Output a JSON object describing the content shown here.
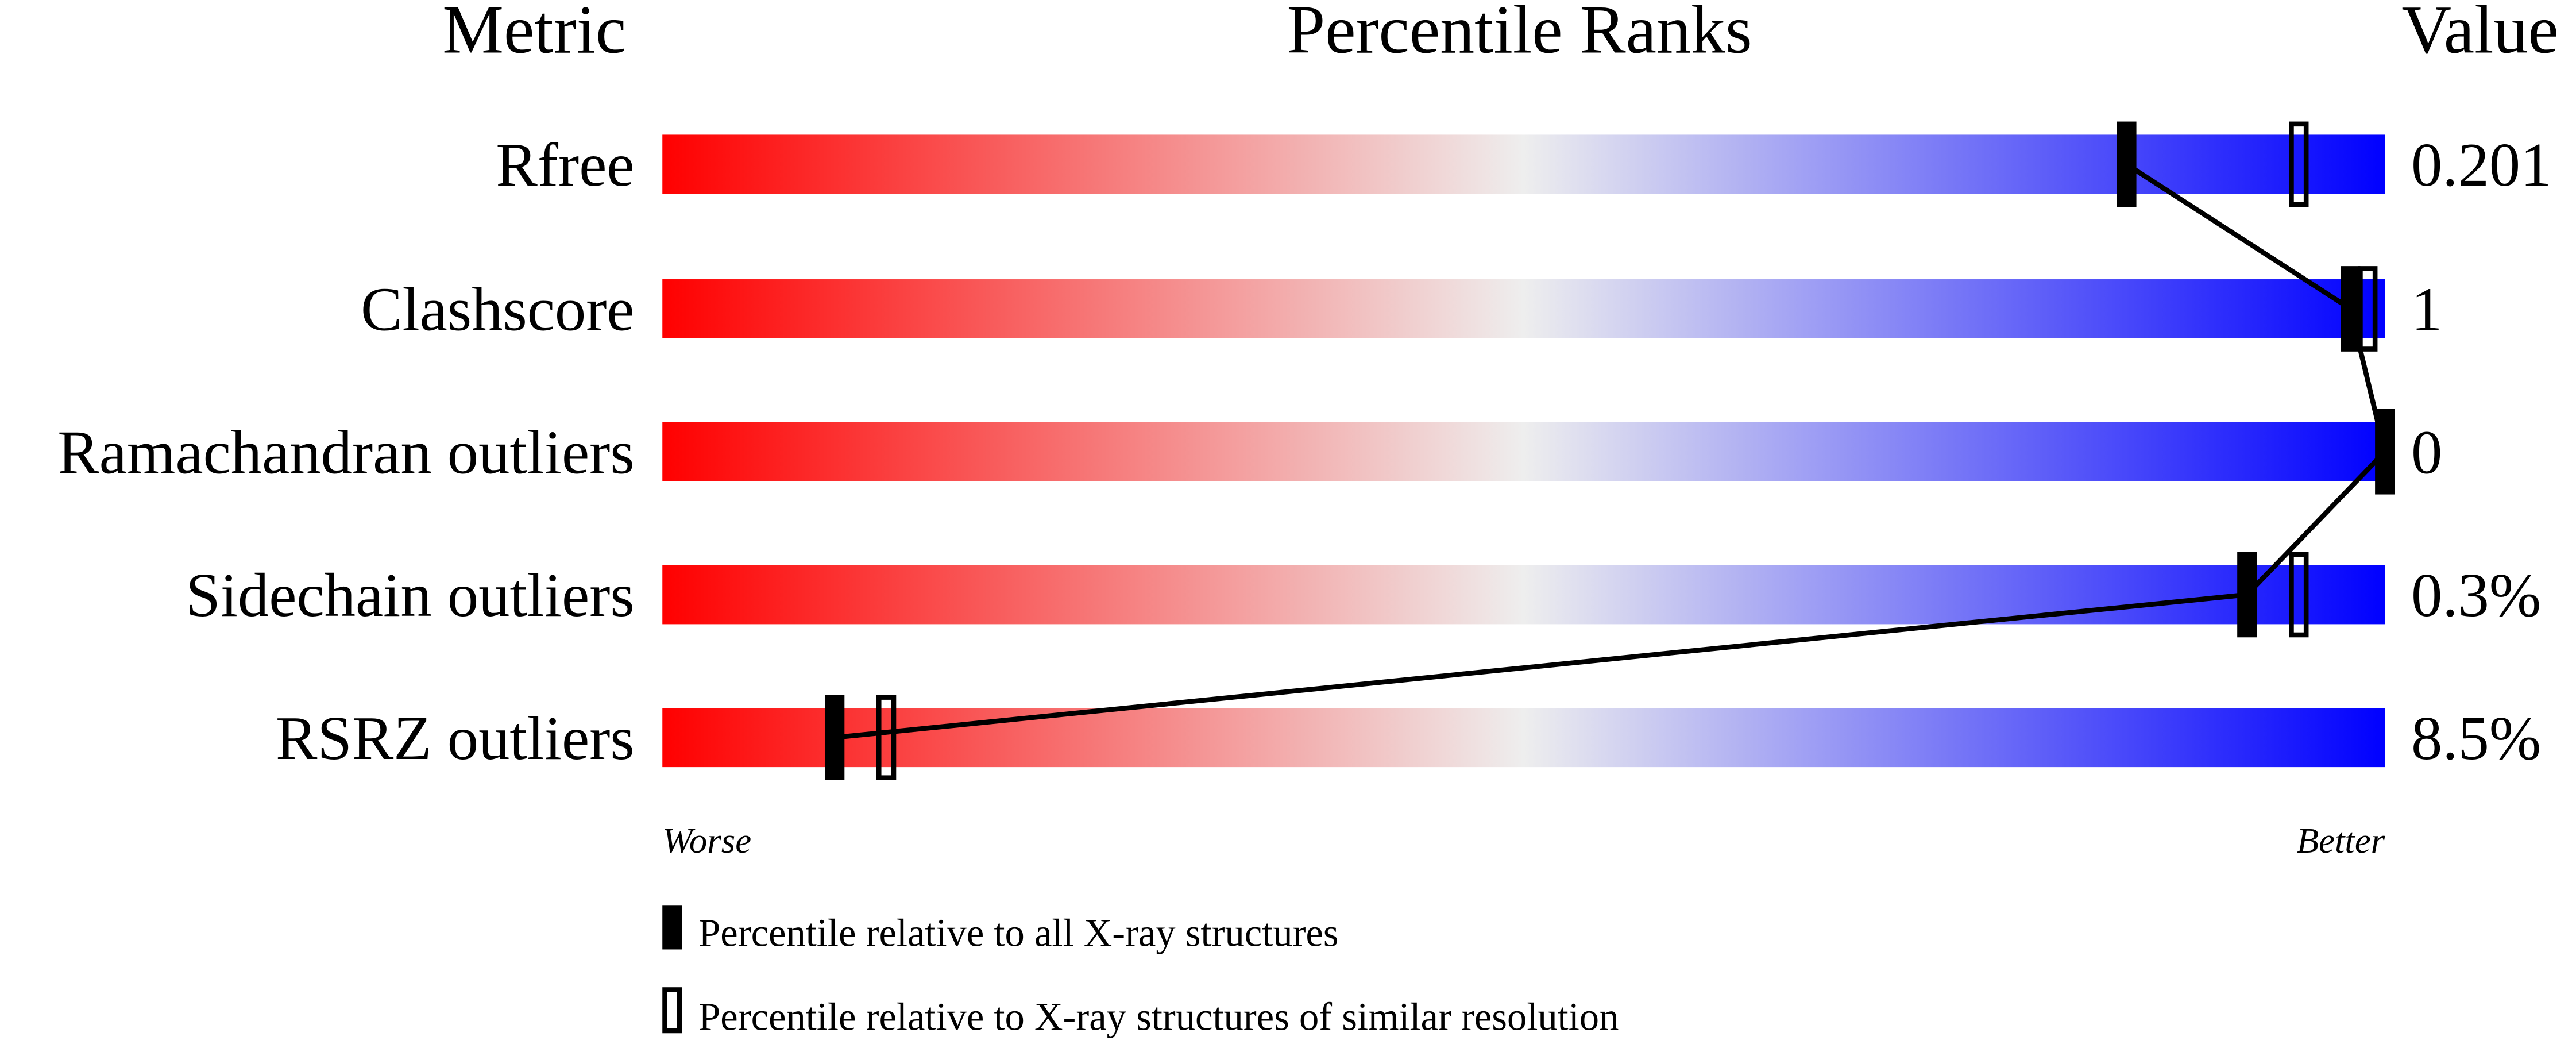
{
  "chart_data": {
    "type": "bar",
    "title": "Percentile Ranks",
    "headers": {
      "metric": "Metric",
      "ranks": "Percentile Ranks",
      "value": "Value"
    },
    "xlim": [
      0,
      100
    ],
    "axis_labels": {
      "left": "Worse",
      "right": "Better"
    },
    "colors": {
      "worse": "#ff0000",
      "middle": "#eeeeee",
      "better": "#0000ff",
      "marker": "#000000"
    },
    "rows": [
      {
        "metric": "Rfree",
        "value": "0.201",
        "percentile_all": 85,
        "percentile_similar": 95
      },
      {
        "metric": "Clashscore",
        "value": "1",
        "percentile_all": 98,
        "percentile_similar": 99
      },
      {
        "metric": "Ramachandran outliers",
        "value": "0",
        "percentile_all": 100,
        "percentile_similar": null
      },
      {
        "metric": "Sidechain outliers",
        "value": "0.3%",
        "percentile_all": 92,
        "percentile_similar": 95
      },
      {
        "metric": "RSRZ outliers",
        "value": "8.5%",
        "percentile_all": 10,
        "percentile_similar": 13
      }
    ],
    "legend": [
      {
        "marker": "filled",
        "label": "Percentile relative to all X-ray structures"
      },
      {
        "marker": "open",
        "label": "Percentile relative to X-ray structures of similar resolution"
      }
    ]
  }
}
